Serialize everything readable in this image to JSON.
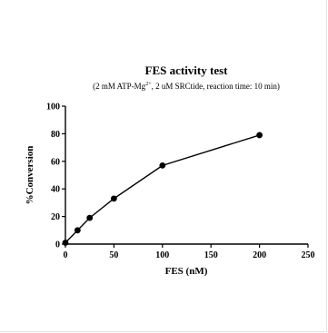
{
  "chart_data": {
    "type": "line",
    "title": "FES activity test",
    "subtitle": {
      "prefix": "(2 mM ATP-Mg",
      "superscript": "2+",
      "suffix": ", 2 uM SRCtide, reaction time: 10 min)"
    },
    "xlabel": "FES (nM)",
    "ylabel": "%Conversion",
    "xlim": [
      0,
      250
    ],
    "ylim": [
      0,
      100
    ],
    "xticks": [
      0,
      50,
      100,
      150,
      200,
      250
    ],
    "yticks": [
      0,
      20,
      40,
      60,
      80,
      100
    ],
    "grid": false,
    "series": [
      {
        "x": [
          0,
          12.5,
          25,
          50,
          100,
          200
        ],
        "y": [
          1,
          10,
          19,
          33,
          57,
          79
        ]
      }
    ],
    "colors": {
      "line": "#000000",
      "marker": "#000000",
      "axis": "#000000"
    }
  }
}
